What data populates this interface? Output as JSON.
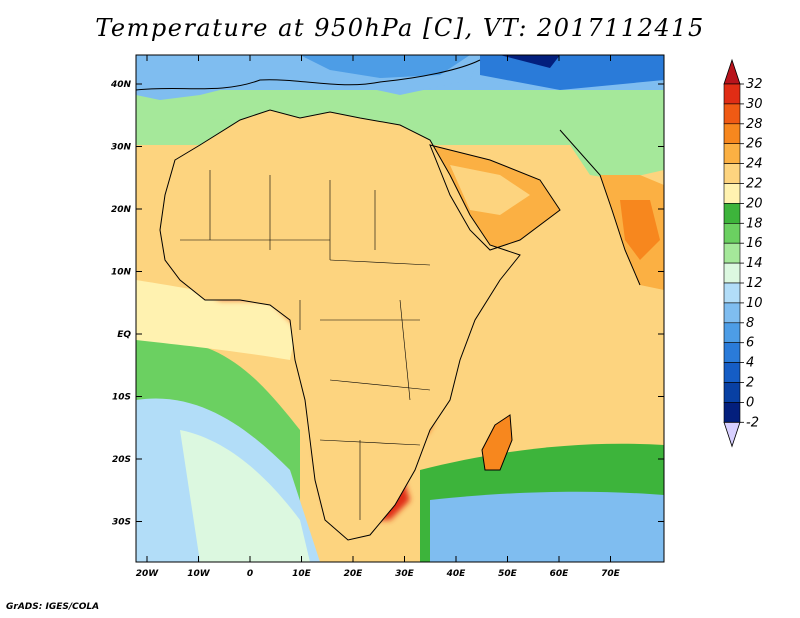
{
  "title": "Temperature at 950hPa [C], VT: 2017112415",
  "credit": "GrADS: IGES/COLA",
  "axes": {
    "lat_labels": [
      "40N",
      "30N",
      "20N",
      "10N",
      "EQ",
      "10S",
      "20S",
      "30S"
    ],
    "lon_labels": [
      "20W",
      "10W",
      "0",
      "10E",
      "20E",
      "30E",
      "40E",
      "50E",
      "60E",
      "70E"
    ]
  },
  "colorbar": {
    "labels": [
      "32",
      "30",
      "28",
      "26",
      "24",
      "22",
      "20",
      "18",
      "16",
      "14",
      "12",
      "10",
      "8",
      "6",
      "4",
      "2",
      "0",
      "-2"
    ],
    "colors": [
      "#e02d15",
      "#f05a14",
      "#f7871e",
      "#fbb043",
      "#fdd47f",
      "#fff2b0",
      "#3db43b",
      "#6bd061",
      "#a5e89a",
      "#dcf8e0",
      "#b2ddf8",
      "#7fbdf0",
      "#4d9de6",
      "#2a7bd9",
      "#155dc5",
      "#0840a3",
      "#031f7d"
    ],
    "top_arrow_color": "#b8141c",
    "bottom_arrow_color": "#d8d0ff"
  },
  "palette": {
    "ocean_cool": "#7fbdf0",
    "ocean_mid": "#a5e89a",
    "ocean_warm": "#fdd47f",
    "land_hot": "#f05a14",
    "land_vhot": "#e02d15",
    "land_warm": "#f7871e",
    "land_mild": "#6bd061",
    "cold_north": "#2a7bd9",
    "coast": "#000000"
  }
}
